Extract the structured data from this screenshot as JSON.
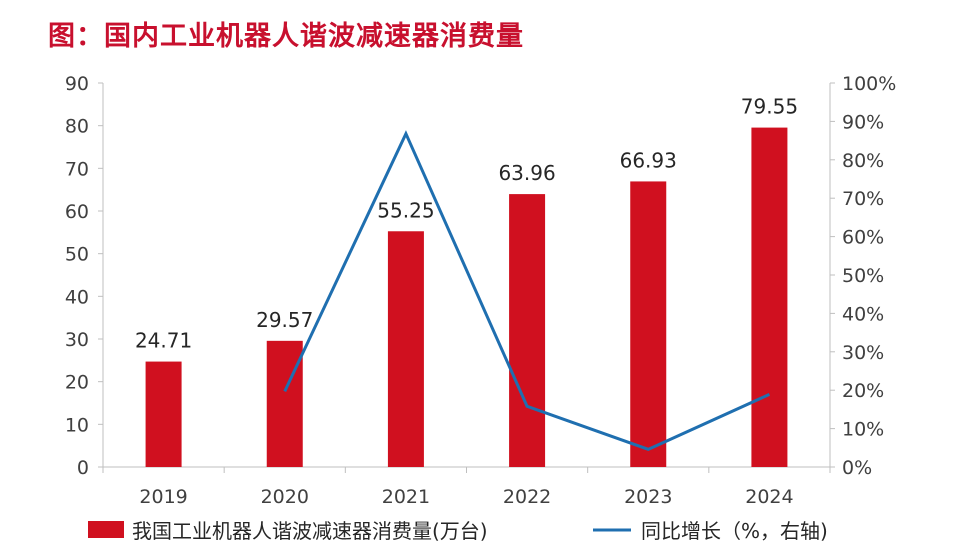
{
  "page_title": "图：国内工业机器人谐波减速器消费量",
  "colors": {
    "title": "#c8102e",
    "bar": "#d0101f",
    "line": "#1f6fb0",
    "axis": "#bfbfbf"
  },
  "chart_data": {
    "type": "bar",
    "title": "图：国内工业机器人谐波减速器消费量",
    "categories": [
      "2019",
      "2020",
      "2021",
      "2022",
      "2023",
      "2024"
    ],
    "series": [
      {
        "name": "我国工业机器人谐波减速器消费量(万台)",
        "type": "bar",
        "axis": "left",
        "values": [
          24.71,
          29.57,
          55.25,
          63.96,
          66.93,
          79.55
        ]
      },
      {
        "name": "同比增长（%，右轴)",
        "type": "line",
        "axis": "right",
        "values": [
          null,
          19.7,
          86.8,
          15.8,
          4.6,
          18.9
        ]
      }
    ],
    "data_labels": [
      "24.71",
      "29.57",
      "55.25",
      "63.96",
      "66.93",
      "79.55"
    ],
    "y_left": {
      "ylim": [
        0,
        90
      ],
      "ticks": [
        "0",
        "10",
        "20",
        "30",
        "40",
        "50",
        "60",
        "70",
        "80",
        "90"
      ]
    },
    "y_right": {
      "ylim": [
        0,
        100
      ],
      "ticks": [
        "0%",
        "10%",
        "20%",
        "30%",
        "40%",
        "50%",
        "60%",
        "70%",
        "80%",
        "90%",
        "100%"
      ]
    },
    "grid": false,
    "legend": "bottom"
  }
}
